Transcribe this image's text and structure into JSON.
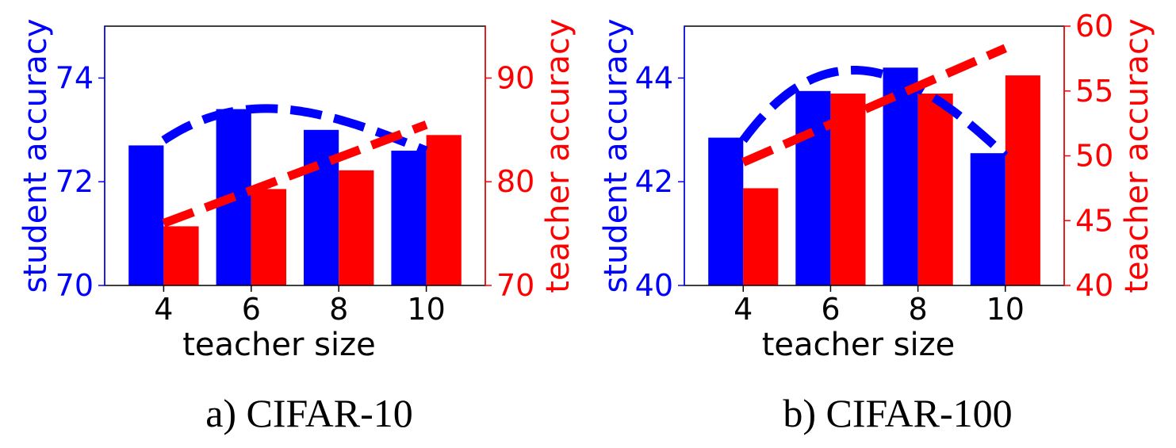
{
  "chart_data": [
    {
      "type": "bar",
      "caption": "a) CIFAR-10",
      "xlabel": "teacher size",
      "ylabel_left": "student accuracy",
      "ylabel_right": "teacher accuracy",
      "categories": [
        "4",
        "6",
        "8",
        "10"
      ],
      "ylim_left": [
        70,
        75
      ],
      "yticks_left": [
        70,
        72,
        74
      ],
      "ylim_right": [
        70,
        95
      ],
      "yticks_right": [
        70,
        80,
        90
      ],
      "series": [
        {
          "axis": "left",
          "color": "#0000ff",
          "values": [
            72.7,
            73.4,
            73.0,
            72.6
          ]
        },
        {
          "axis": "right",
          "color": "#ff0000",
          "values": [
            75.7,
            79.3,
            81.1,
            84.5
          ]
        }
      ],
      "trend_left": {
        "color": "#0000ff",
        "type": "quadratic",
        "points": [
          [
            4,
            72.8
          ],
          [
            6,
            73.4
          ],
          [
            8,
            73.2
          ],
          [
            10,
            72.6
          ]
        ]
      },
      "trend_right": {
        "color": "#ff0000",
        "type": "linear",
        "points": [
          [
            4,
            76.0
          ],
          [
            10,
            85.5
          ]
        ]
      }
    },
    {
      "type": "bar",
      "caption": "b) CIFAR-100",
      "xlabel": "teacher size",
      "ylabel_left": "student accuracy",
      "ylabel_right": "teacher accuracy",
      "categories": [
        "4",
        "6",
        "8",
        "10"
      ],
      "ylim_left": [
        40,
        45
      ],
      "yticks_left": [
        40,
        42,
        44
      ],
      "ylim_right": [
        40,
        60
      ],
      "yticks_right": [
        40,
        45,
        50,
        55,
        60
      ],
      "series": [
        {
          "axis": "left",
          "color": "#0000ff",
          "values": [
            42.85,
            43.75,
            44.2,
            42.55
          ]
        },
        {
          "axis": "right",
          "color": "#ff0000",
          "values": [
            47.5,
            54.8,
            54.8,
            56.2
          ]
        }
      ],
      "trend_left": {
        "color": "#0000ff",
        "type": "quadratic",
        "points": [
          [
            4,
            42.8
          ],
          [
            6,
            44.1
          ],
          [
            8,
            43.8
          ],
          [
            10,
            42.5
          ]
        ]
      },
      "trend_right": {
        "color": "#ff0000",
        "type": "linear",
        "points": [
          [
            4,
            49.5
          ],
          [
            10,
            58.3
          ]
        ]
      }
    }
  ]
}
